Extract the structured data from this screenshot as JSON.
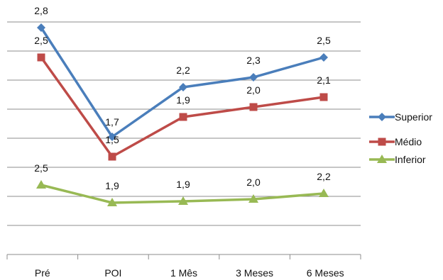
{
  "chart_data": {
    "type": "line",
    "categories": [
      "Pré",
      "POI",
      "1 Mês",
      "3 Meses",
      "6 Meses"
    ],
    "series": [
      {
        "name": "Superior",
        "values": [
          2.8,
          1.7,
          2.2,
          2.3,
          2.5
        ],
        "labels": [
          "2,8",
          "1,7",
          "2,2",
          "2,3",
          "2,5"
        ],
        "color": "#4a7ebb",
        "marker": "diamond"
      },
      {
        "name": "Médio",
        "values": [
          2.5,
          1.5,
          1.9,
          2.0,
          2.1
        ],
        "labels": [
          "2,5",
          "1,5",
          "1,9",
          "2,0",
          "2,1"
        ],
        "color": "#be4b48",
        "marker": "square"
      },
      {
        "name": "Inferior",
        "values": [
          2.5,
          1.9,
          1.9,
          2.0,
          2.2
        ],
        "labels": [
          "2,5",
          "1,9",
          "1,9",
          "2,0",
          "2,2"
        ],
        "color": "#98b954",
        "marker": "triangle"
      }
    ],
    "grid": true,
    "y_axis_labels_visible": false,
    "legend_position": "right"
  }
}
